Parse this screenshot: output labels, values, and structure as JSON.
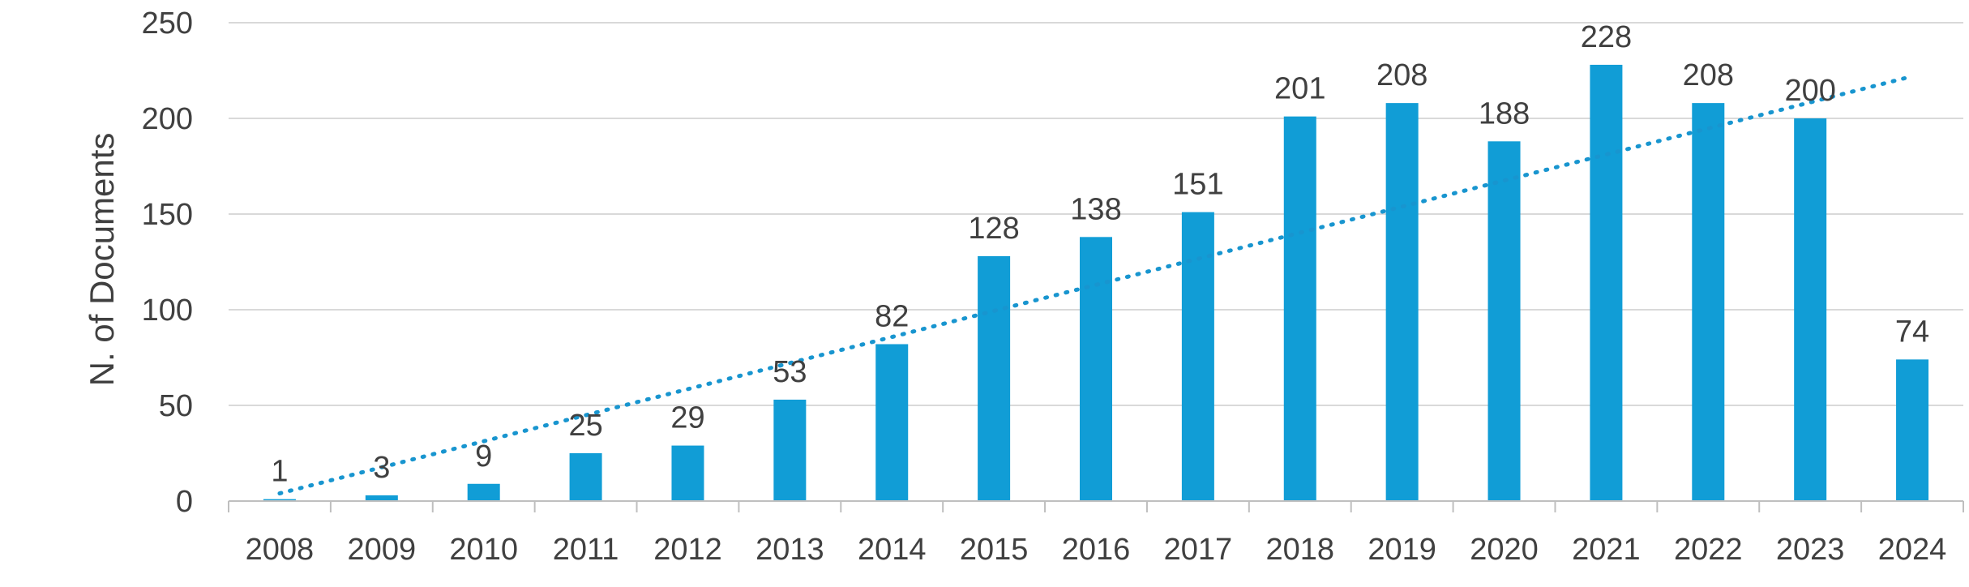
{
  "chart_data": {
    "type": "bar",
    "ylabel": "N. of Documents",
    "xlabel": "",
    "categories": [
      "2008",
      "2009",
      "2010",
      "2011",
      "2012",
      "2013",
      "2014",
      "2015",
      "2016",
      "2017",
      "2018",
      "2019",
      "2020",
      "2021",
      "2022",
      "2023",
      "2024"
    ],
    "values": [
      1,
      3,
      9,
      25,
      29,
      53,
      82,
      128,
      138,
      151,
      201,
      208,
      188,
      228,
      208,
      200,
      74
    ],
    "data_labels": [
      "1",
      "3",
      "9",
      "25",
      "29",
      "53",
      "82",
      "128",
      "138",
      "151",
      "201",
      "208",
      "188",
      "228",
      "208",
      "200",
      "74"
    ],
    "ylim": [
      0,
      250
    ],
    "yticks": [
      0,
      50,
      100,
      150,
      200,
      250
    ],
    "ytick_labels": [
      "0",
      "50",
      "100",
      "150",
      "200",
      "250"
    ],
    "grid": true,
    "legend": "none",
    "trendline": {
      "type": "linear",
      "style": "dotted",
      "start_value": 4,
      "end_value": 222
    },
    "colors": {
      "bar": "#119dd6",
      "trendline": "#1895cf",
      "text": "#404040",
      "grid": "#d9d9d9"
    }
  }
}
